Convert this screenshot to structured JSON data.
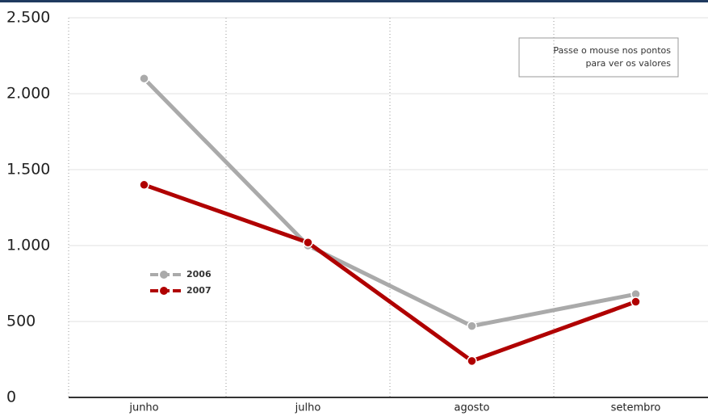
{
  "chart_data": {
    "type": "line",
    "categories": [
      "junho",
      "julho",
      "agosto",
      "setembro"
    ],
    "series": [
      {
        "name": "2006",
        "color": "#aaaaaa",
        "values": [
          2100,
          1000,
          470,
          680
        ]
      },
      {
        "name": "2007",
        "color": "#b00000",
        "values": [
          1400,
          1020,
          240,
          630
        ]
      }
    ],
    "ylim": [
      0,
      2500
    ],
    "yticks": [
      0,
      500,
      {
        "value": 1000,
        "label": "1.000"
      },
      {
        "value": 1500,
        "label": "1.500"
      },
      {
        "value": 2000,
        "label": "2.000"
      },
      {
        "value": 2500,
        "label": "2.500"
      }
    ],
    "grid": true,
    "annotation": [
      "Passe o mouse nos pontos",
      "para ver os valores"
    ]
  }
}
